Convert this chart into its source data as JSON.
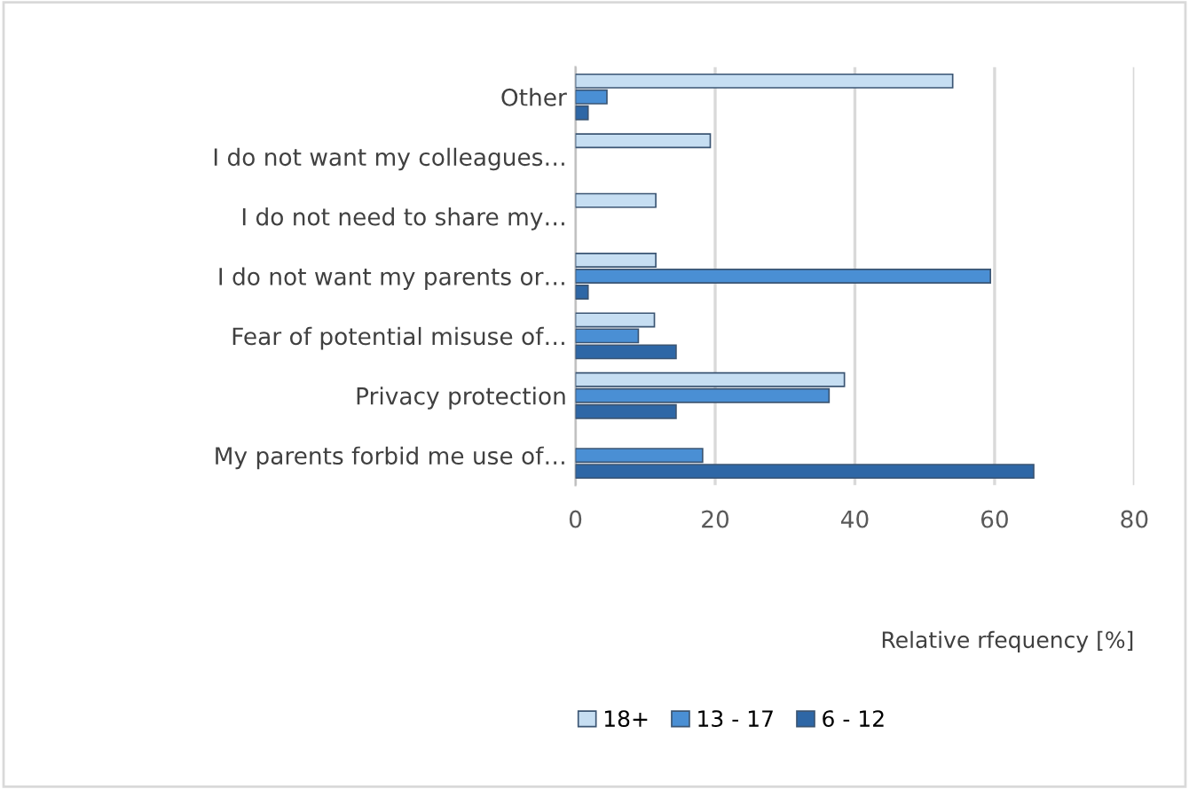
{
  "chart_data": {
    "type": "bar",
    "orientation": "horizontal",
    "categories": [
      "Other",
      "I do not want my colleagues…",
      "I do not need to share my…",
      "I do not want my parents or…",
      "Fear of potential misuse of…",
      "Privacy protection",
      "My parents forbid me use of…"
    ],
    "series": [
      {
        "name": "18+",
        "color": "#c6def2",
        "values": [
          54,
          19.3,
          11.5,
          11.5,
          11.3,
          38.5,
          0
        ]
      },
      {
        "name": "13 - 17",
        "color": "#4a8fd4",
        "values": [
          4.5,
          0,
          0,
          59.4,
          9,
          36.3,
          18.2
        ]
      },
      {
        "name": "6 - 12",
        "color": "#2e67a6",
        "values": [
          1.8,
          0,
          0,
          1.8,
          14.4,
          14.4,
          65.6
        ]
      }
    ],
    "xlabel": "Relative rfequency [%]",
    "xlim": [
      0,
      80
    ],
    "xticks": [
      0,
      20,
      40,
      60,
      80
    ],
    "grid": "x",
    "legend": "bottom"
  }
}
